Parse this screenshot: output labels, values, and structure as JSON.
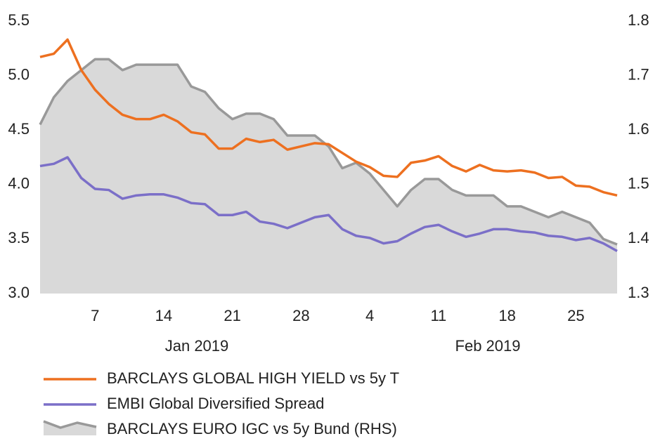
{
  "chart_data": {
    "type": "line",
    "x": [
      null,
      null,
      null,
      null,
      "7",
      null,
      null,
      null,
      null,
      "14",
      null,
      null,
      null,
      null,
      "21",
      null,
      null,
      null,
      null,
      "28",
      null,
      null,
      null,
      null,
      "4",
      null,
      null,
      null,
      null,
      "11",
      null,
      null,
      null,
      null,
      "18",
      null,
      null,
      null,
      null,
      "25",
      null,
      null,
      null
    ],
    "annotations": [
      "Jan 2019",
      "Feb 2019"
    ],
    "ylim": [
      3.0,
      5.5
    ],
    "yticks": [
      {
        "value": 3.0,
        "label": "3.0"
      },
      3.5,
      {
        "value": 4.0,
        "label": "4.0"
      },
      4.5,
      {
        "value": 5.0,
        "label": "5.0"
      },
      5.5
    ],
    "y2lim": [
      1.3,
      1.8
    ],
    "y2ticks": [
      1.3,
      1.4,
      1.5,
      1.6,
      1.7,
      1.8
    ],
    "series": [
      {
        "name": "BARCLAYS GLOBAL HIGH YIELD vs 5y T",
        "color": "#ed7020",
        "values": [
          5.17,
          5.2,
          5.33,
          5.05,
          4.87,
          4.74,
          4.64,
          4.6,
          4.6,
          4.64,
          4.58,
          4.48,
          4.46,
          4.33,
          4.33,
          4.42,
          4.39,
          4.41,
          4.32,
          4.35,
          4.38,
          4.37,
          4.29,
          4.21,
          4.16,
          4.08,
          4.07,
          4.2,
          4.22,
          4.26,
          4.17,
          4.12,
          4.18,
          4.13,
          4.12,
          4.13,
          4.11,
          4.06,
          4.07,
          3.99,
          3.98,
          3.93,
          3.9
        ]
      },
      {
        "name": "EMBI Global Diversified Spread",
        "color": "#7b6fc8",
        "values": [
          4.17,
          4.19,
          4.25,
          4.06,
          3.96,
          3.95,
          3.87,
          3.9,
          3.91,
          3.91,
          3.88,
          3.83,
          3.82,
          3.72,
          3.72,
          3.75,
          3.66,
          3.64,
          3.6,
          3.65,
          3.7,
          3.72,
          3.59,
          3.53,
          3.51,
          3.46,
          3.48,
          3.55,
          3.61,
          3.63,
          3.57,
          3.52,
          3.55,
          3.59,
          3.59,
          3.57,
          3.56,
          3.53,
          3.52,
          3.49,
          3.51,
          3.46,
          3.39
        ]
      },
      {
        "name": "BARCLAYS EURO IGC vs 5y Bund (RHS)",
        "color": "#999999",
        "fill": "#d9d9d9",
        "axis": "y2",
        "values": [
          1.61,
          1.66,
          1.69,
          1.71,
          1.73,
          1.73,
          1.71,
          1.72,
          1.72,
          1.72,
          1.72,
          1.68,
          1.67,
          1.64,
          1.62,
          1.63,
          1.63,
          1.62,
          1.59,
          1.59,
          1.59,
          1.57,
          1.53,
          1.54,
          1.52,
          1.49,
          1.46,
          1.49,
          1.51,
          1.51,
          1.49,
          1.48,
          1.48,
          1.48,
          1.46,
          1.46,
          1.45,
          1.44,
          1.45,
          1.44,
          1.43,
          1.4,
          1.39
        ]
      }
    ]
  }
}
